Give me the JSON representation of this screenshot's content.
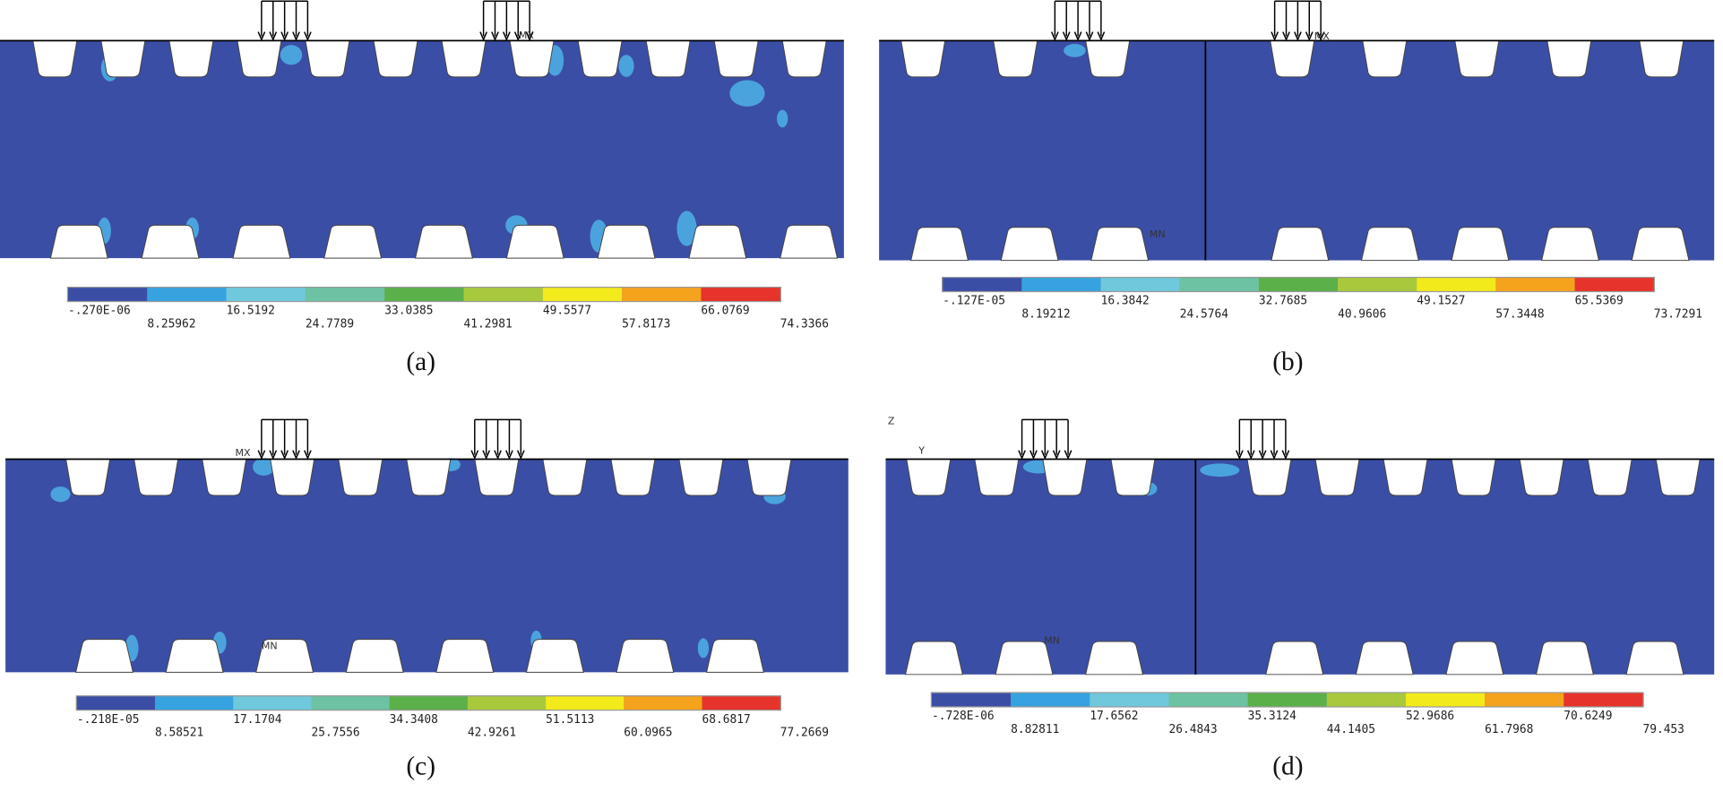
{
  "panels": [
    {
      "caption": "(a)",
      "legend_labels": [
        "-.270E-06",
        "8.25962",
        "16.5192",
        "24.7789",
        "33.0385",
        "41.2981",
        "49.5577",
        "57.8173",
        "66.0769",
        "74.3366"
      ],
      "annotations": [
        "MX"
      ]
    },
    {
      "caption": "(b)",
      "legend_labels": [
        "-.127E-05",
        "8.19212",
        "16.3842",
        "24.5764",
        "32.7685",
        "40.9606",
        "49.1527",
        "57.3448",
        "65.5369",
        "73.7291"
      ],
      "annotations": [
        "MX",
        "MN"
      ]
    },
    {
      "caption": "(c)",
      "legend_labels": [
        "-.218E-05",
        "8.58521",
        "17.1704",
        "25.7556",
        "34.3408",
        "42.9261",
        "51.5113",
        "60.0965",
        "68.6817",
        "77.2669"
      ],
      "annotations": [
        "MX",
        "MN"
      ]
    },
    {
      "caption": "(d)",
      "legend_labels": [
        "-.728E-06",
        "8.82811",
        "17.6562",
        "26.4843",
        "35.3124",
        "44.1405",
        "52.9686",
        "61.7968",
        "70.6249",
        "79.453"
      ],
      "annotations": [
        "MN",
        "Z",
        "Y"
      ]
    }
  ],
  "legend_colors": [
    "#3b4ea5",
    "#36a3e0",
    "#6fc8dc",
    "#6cc2a2",
    "#5cb04a",
    "#a8c93c",
    "#f3ea1c",
    "#f5a21c",
    "#e6332b"
  ],
  "plate_color": "#3b4ea5"
}
